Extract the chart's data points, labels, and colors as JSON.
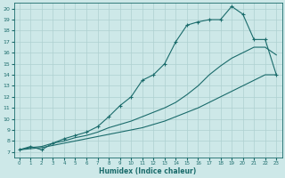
{
  "xlabel": "Humidex (Indice chaleur)",
  "bg_color": "#cde8e8",
  "line_color": "#1a6b6b",
  "grid_color": "#aed0d0",
  "xlim": [
    -0.5,
    23.5
  ],
  "ylim": [
    6.5,
    20.5
  ],
  "xticks": [
    0,
    1,
    2,
    3,
    4,
    5,
    6,
    7,
    8,
    9,
    10,
    11,
    12,
    13,
    14,
    15,
    16,
    17,
    18,
    19,
    20,
    21,
    22,
    23
  ],
  "yticks": [
    7,
    8,
    9,
    10,
    11,
    12,
    13,
    14,
    15,
    16,
    17,
    18,
    19,
    20
  ],
  "line1_x": [
    0,
    1,
    2,
    3,
    4,
    5,
    6,
    7,
    8,
    9,
    10,
    11,
    12,
    13,
    14,
    15,
    16,
    17,
    18,
    19,
    20,
    21,
    22,
    23
  ],
  "line1_y": [
    7.2,
    7.5,
    7.2,
    7.8,
    8.2,
    8.5,
    8.8,
    9.3,
    10.2,
    11.2,
    12.0,
    13.5,
    14.0,
    15.0,
    17.0,
    18.5,
    18.8,
    19.0,
    19.0,
    20.2,
    19.5,
    17.2,
    17.2,
    14.0
  ],
  "line2_x": [
    0,
    1,
    2,
    3,
    4,
    5,
    6,
    7,
    8,
    9,
    10,
    11,
    12,
    13,
    14,
    15,
    16,
    17,
    18,
    19,
    20,
    21,
    22,
    23
  ],
  "line2_y": [
    7.2,
    7.3,
    7.4,
    7.6,
    7.8,
    8.0,
    8.2,
    8.4,
    8.6,
    8.8,
    9.0,
    9.2,
    9.5,
    9.8,
    10.2,
    10.6,
    11.0,
    11.5,
    12.0,
    12.5,
    13.0,
    13.5,
    14.0,
    14.0
  ],
  "line3_x": [
    0,
    1,
    2,
    3,
    4,
    5,
    6,
    7,
    8,
    9,
    10,
    11,
    12,
    13,
    14,
    15,
    16,
    17,
    18,
    19,
    20,
    21,
    22,
    23
  ],
  "line3_y": [
    7.2,
    7.4,
    7.5,
    7.8,
    8.0,
    8.3,
    8.5,
    8.8,
    9.2,
    9.5,
    9.8,
    10.2,
    10.6,
    11.0,
    11.5,
    12.2,
    13.0,
    14.0,
    14.8,
    15.5,
    16.0,
    16.5,
    16.5,
    15.8
  ]
}
